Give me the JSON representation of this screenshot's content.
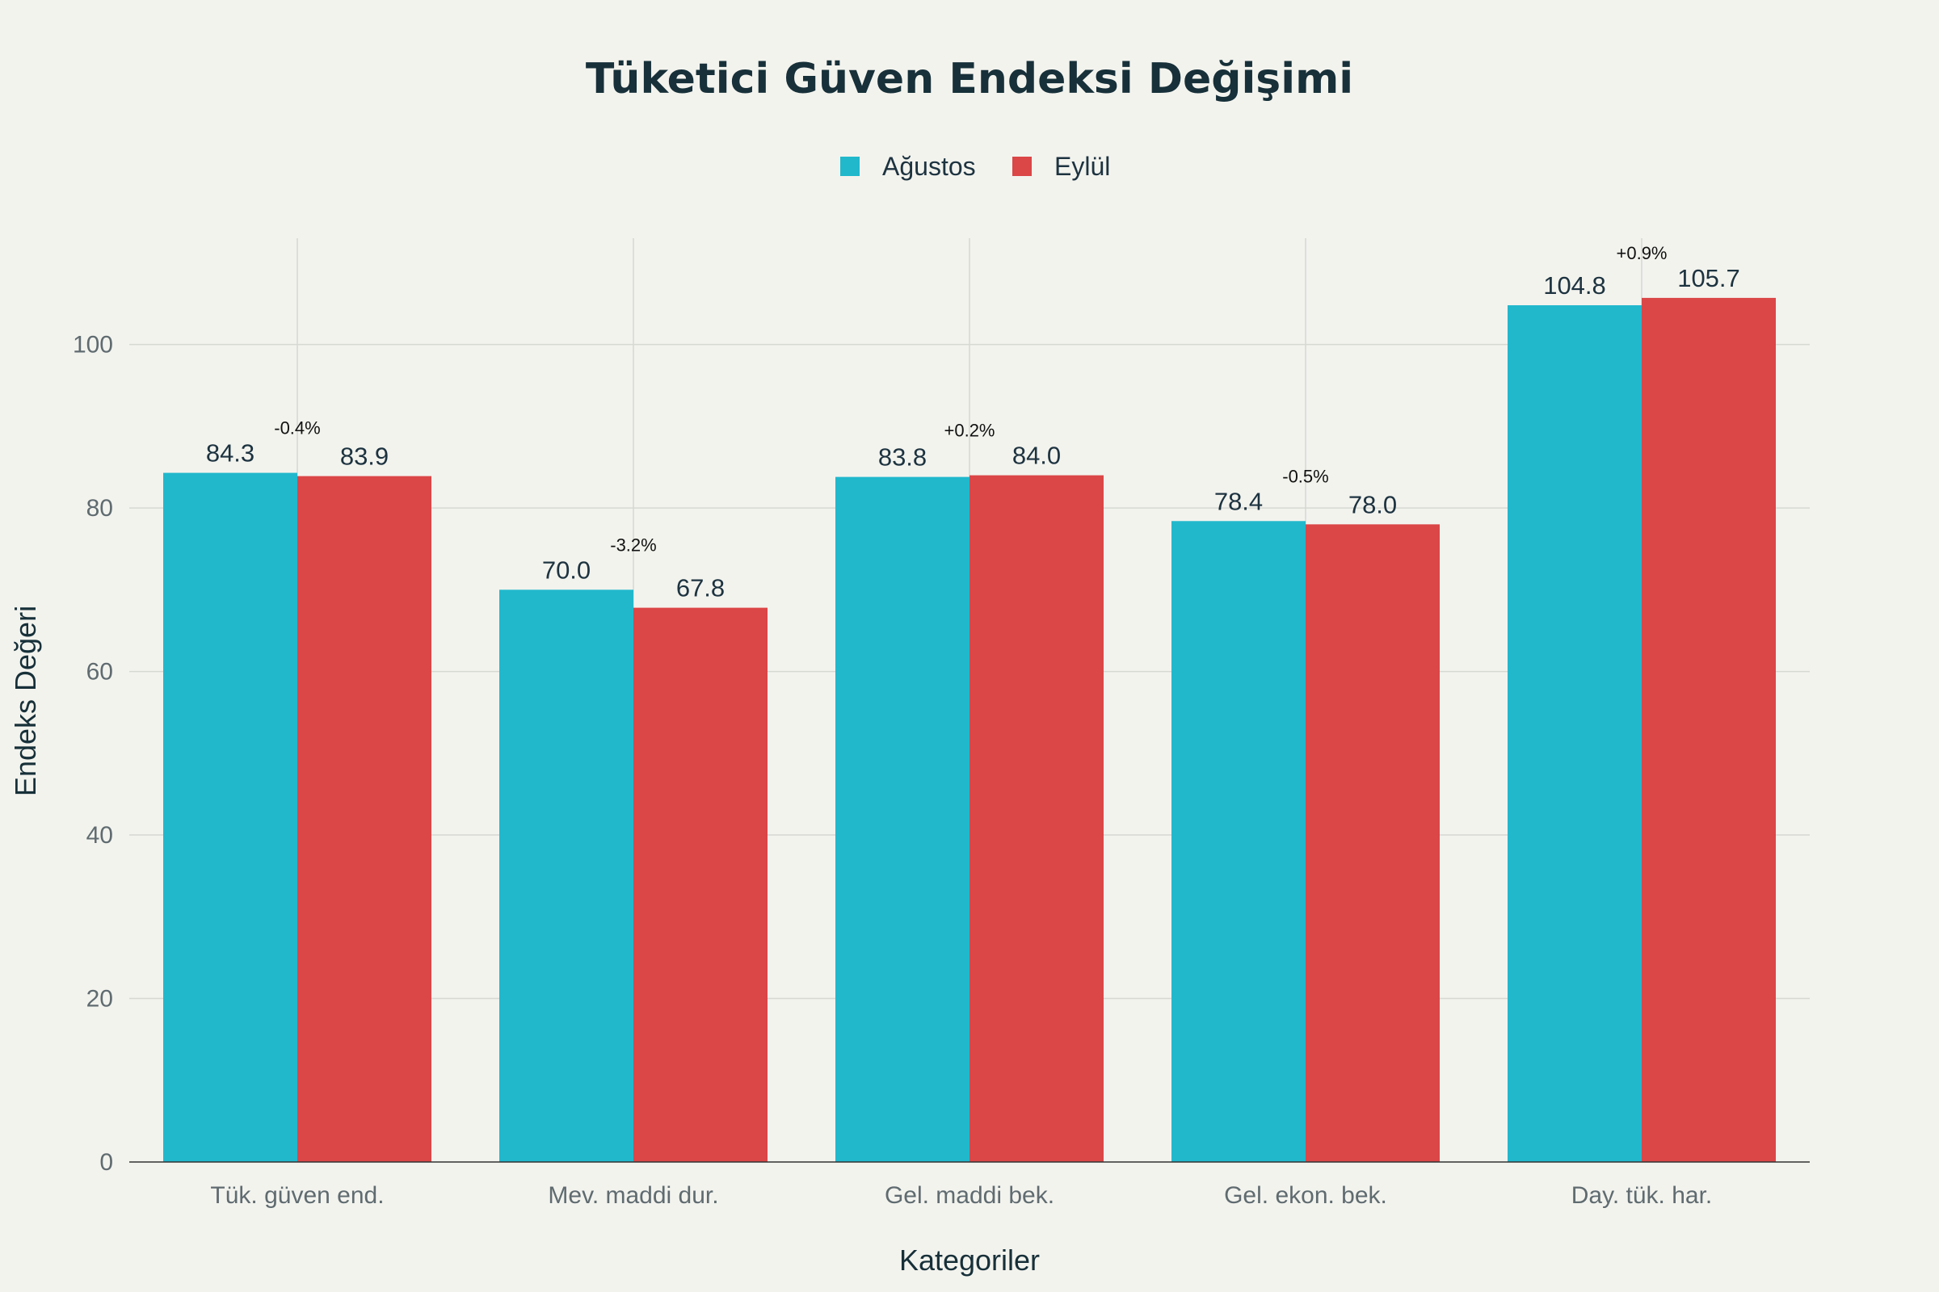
{
  "chart_data": {
    "type": "bar",
    "title": "Tüketici Güven Endeksi Değişimi",
    "xlabel": "Kategoriler",
    "ylabel": "Endeks Değeri",
    "ylim": [
      0,
      113
    ],
    "yticks": [
      0,
      20,
      40,
      60,
      80,
      100
    ],
    "grid": true,
    "legend_position": "top",
    "categories": [
      "Tük. güven end.",
      "Mev. maddi dur.",
      "Gel. maddi bek.",
      "Gel. ekon. bek.",
      "Day. tük. har."
    ],
    "series": [
      {
        "name": "Ağustos",
        "color": "#21b8cc",
        "values": [
          84.3,
          70.0,
          83.8,
          78.4,
          104.8
        ],
        "labels": [
          "84.3",
          "70.0",
          "83.8",
          "78.4",
          "104.8"
        ]
      },
      {
        "name": "Eylül",
        "color": "#db4647",
        "values": [
          83.9,
          67.8,
          84.0,
          78.0,
          105.7
        ],
        "labels": [
          "83.9",
          "67.8",
          "84.0",
          "78.0",
          "105.7"
        ]
      }
    ],
    "change_annotations": [
      "-0.4%",
      "-3.2%",
      "+0.2%",
      "-0.5%",
      "+0.9%"
    ]
  }
}
